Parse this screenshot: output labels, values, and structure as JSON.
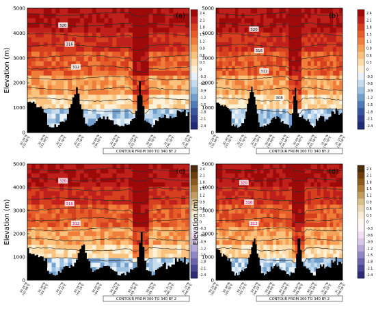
{
  "ylabel": "Elevation (m)",
  "yticks": [
    "0",
    "1000",
    "2000",
    "3000",
    "4000",
    "5000"
  ],
  "xticks": [
    [
      "30.29°N",
      "102.98°E"
    ],
    [
      "30.38°N",
      "103.38°E"
    ],
    [
      "30.47°N",
      "103.78°E"
    ],
    [
      "30.56°N",
      "104.18°E"
    ],
    [
      "30.65°N",
      "104.58°E"
    ],
    [
      "30.74°N",
      "104.98°E"
    ],
    [
      "30.83°N",
      "105.38°E"
    ],
    [
      "30.92°N",
      "105.78°E"
    ],
    [
      "31.01°N",
      "106.18°E"
    ],
    [
      "31.10°N",
      "106.58°E"
    ]
  ],
  "contour_note": "CONTOUR FROM 300 TO 340 BY 2",
  "colorbar_a": [
    "2.4",
    "2.1",
    "1.8",
    "1.5",
    "1.2",
    "0.9",
    "0.6",
    "0.3",
    "0",
    "-0.3",
    "-0.6",
    "-0.9",
    "-1.2",
    "-1.5",
    "-1.8",
    "-2.1",
    "-2.4"
  ],
  "colorbar_c": [
    "2.4",
    "2.1",
    "1.8",
    "1.5",
    "1.2",
    "0.9",
    "0.6",
    "0.3",
    "0",
    "-0.3",
    "-0.6",
    "-0.9",
    "-1.2",
    "-1.5",
    "-1.8",
    "-2.1",
    "-2.4"
  ],
  "colors": {
    "warm": [
      "#9e0a0a",
      "#c0201c",
      "#d6401f",
      "#e65d2a",
      "#f07e3a",
      "#f6a155",
      "#fac27c",
      "#fddcaa",
      "#fdf2d8"
    ],
    "cool": [
      "#e9f2f9",
      "#c6dcee",
      "#9dc1e0",
      "#729fcc",
      "#4f7bb6",
      "#3a559f",
      "#2d3c8a",
      "#1e2a74"
    ],
    "brown": [
      "#4a2a08",
      "#6e3f0e",
      "#8c5a1c",
      "#a97a38",
      "#c29c5e",
      "#d8bf8c",
      "#ead9b4",
      "#f6ecd6",
      "#fcf7ec"
    ],
    "purple": [
      "#fbf3fb",
      "#f2dcf2",
      "#d9c7e8",
      "#b6a8d8",
      "#8f86c4",
      "#6a64ac",
      "#4a4592",
      "#2e2b76"
    ]
  },
  "chart_data": [
    {
      "panel": "(a)",
      "type": "heatmap",
      "ylabel": "Elevation (m)",
      "ylim": [
        0,
        5000
      ],
      "colorbar_range": [
        -2.4,
        2.4
      ],
      "contour_labels": [
        {
          "value": "320",
          "elev": 4320
        },
        {
          "value": "316",
          "elev": 3560
        },
        {
          "value": "312",
          "elev": 2640
        }
      ],
      "peak_col": 0.69,
      "second_peak_col": 0.3
    },
    {
      "panel": "(b)",
      "type": "heatmap",
      "ylabel": "",
      "ylim": [
        0,
        5000
      ],
      "colorbar_range": [
        -2.4,
        2.4
      ],
      "contour_labels": [
        {
          "value": "320",
          "elev": 4160
        },
        {
          "value": "316",
          "elev": 3300
        },
        {
          "value": "312",
          "elev": 2480
        },
        {
          "value": "308",
          "elev": 1400
        }
      ],
      "peak_col": 0.62,
      "second_peak_col": 0.28
    },
    {
      "panel": "(c)",
      "type": "heatmap",
      "ylabel": "Elevation (m)",
      "ylim": [
        0,
        5000
      ],
      "colorbar_range": [
        -2.4,
        2.4
      ],
      "contour_labels": [
        {
          "value": "320",
          "elev": 4280
        },
        {
          "value": "316",
          "elev": 3300
        },
        {
          "value": "312",
          "elev": 2450
        }
      ],
      "peak_col": 0.7,
      "second_peak_col": 0.34
    },
    {
      "panel": "(d)",
      "type": "heatmap",
      "ylabel": "Elevation (m)",
      "ylim": [
        0,
        5000
      ],
      "colorbar_range": [
        -2.4,
        2.4
      ],
      "contour_labels": [
        {
          "value": "320",
          "elev": 4200
        },
        {
          "value": "316",
          "elev": 3360
        },
        {
          "value": "312",
          "elev": 2440
        }
      ],
      "peak_col": 0.65,
      "second_peak_col": 0.3
    }
  ]
}
